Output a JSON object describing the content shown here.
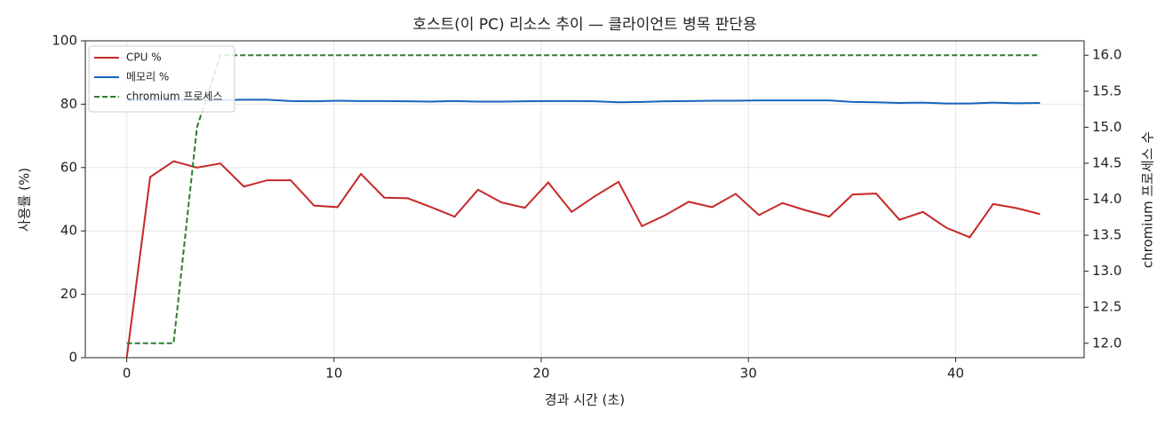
{
  "chart_data": {
    "type": "line",
    "title": "호스트(이 PC) 리소스 추이 — 클라이언트 병목 판단용",
    "x_label": "경과 시간 (초)",
    "y_label": "사용률 (%)",
    "y2_label": "chromium 프로세스 수",
    "x": [
      0,
      1.13,
      2.26,
      3.39,
      4.52,
      5.65,
      6.78,
      7.91,
      9.04,
      10.17,
      11.3,
      12.43,
      13.56,
      14.69,
      15.82,
      16.95,
      18.08,
      19.21,
      20.34,
      21.47,
      22.6,
      23.73,
      24.86,
      25.99,
      27.12,
      28.25,
      29.38,
      30.51,
      31.64,
      32.77,
      33.9,
      35.03,
      36.16,
      37.29,
      38.42,
      39.55,
      40.68,
      41.81,
      42.94,
      44.07
    ],
    "series": [
      {
        "name": "CPU %",
        "color": "#c62828",
        "axis": "y",
        "linestyle": "solid",
        "values": [
          0,
          57,
          62,
          60,
          61.3,
          54,
          56,
          56,
          48,
          47.5,
          58,
          50.5,
          50.3,
          47.5,
          44.5,
          53,
          49,
          47.3,
          55.3,
          46,
          51,
          55.5,
          41.5,
          45,
          49.2,
          47.5,
          51.7,
          45,
          48.8,
          46.5,
          44.5,
          51.5,
          51.8,
          43.5,
          46,
          41,
          38,
          48.5,
          47.2,
          45.3
        ]
      },
      {
        "name": "메모리 %",
        "color": "#1565c0",
        "axis": "y",
        "linestyle": "solid",
        "values": [
          81.2,
          81.3,
          81.3,
          81.3,
          81.3,
          81.4,
          81.4,
          81.0,
          80.9,
          81.1,
          81.0,
          81.0,
          80.9,
          80.8,
          81.0,
          80.8,
          80.8,
          80.9,
          81.0,
          81.0,
          80.9,
          80.6,
          80.7,
          80.9,
          81.0,
          81.1,
          81.1,
          81.2,
          81.2,
          81.2,
          81.2,
          80.7,
          80.6,
          80.4,
          80.5,
          80.2,
          80.2,
          80.5,
          80.3,
          80.4
        ]
      },
      {
        "name": "chromium 프로세스",
        "color": "#2e7d32",
        "axis": "y2",
        "linestyle": "dashed",
        "values": [
          12,
          12,
          12,
          15,
          16,
          16,
          16,
          16,
          16,
          16,
          16,
          16,
          16,
          16,
          16,
          16,
          16,
          16,
          16,
          16,
          16,
          16,
          16,
          16,
          16,
          16,
          16,
          16,
          16,
          16,
          16,
          16,
          16,
          16,
          16,
          16,
          16,
          16,
          16,
          16
        ]
      }
    ],
    "xlim": [
      -2.0,
      46.2
    ],
    "xticks": [
      0,
      10,
      20,
      30,
      40
    ],
    "ylim": [
      0,
      100
    ],
    "yticks": [
      0,
      20,
      40,
      60,
      80,
      100
    ],
    "y2lim": [
      11.8,
      16.2
    ],
    "y2ticks": [
      {
        "value": 12,
        "label": "12.0"
      },
      {
        "value": 12.5,
        "label": "12.5"
      },
      {
        "value": 13,
        "label": "13.0"
      },
      {
        "value": 13.5,
        "label": "13.5"
      },
      {
        "value": 14,
        "label": "14.0"
      },
      {
        "value": 14.5,
        "label": "14.5"
      },
      {
        "value": 15,
        "label": "15.0"
      },
      {
        "value": 15.5,
        "label": "15.5"
      },
      {
        "value": 16,
        "label": "16.0"
      }
    ],
    "grid": true,
    "legend": "upper-left"
  }
}
